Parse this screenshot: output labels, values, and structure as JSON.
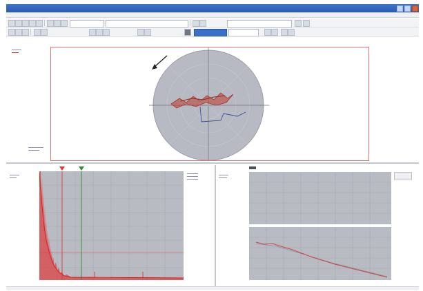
{
  "window": {
    "title": "",
    "controls": [
      "minimize-icon",
      "maximize-icon",
      "close-icon"
    ]
  },
  "menubar": {
    "items": [
      "",
      "",
      "",
      "",
      "",
      "",
      "",
      ""
    ]
  },
  "toolbar": {
    "combo_1_value": "",
    "combo_2_value": "",
    "combo_3_value": "",
    "combo_4_value": ""
  },
  "polar_view": {
    "label": "",
    "legend": "",
    "corner_note": "",
    "direction_arrow": "arrow-icon",
    "colors": {
      "disc": "#b7bac2",
      "trace_red": "#c0392b",
      "trace_blue": "#3b4aa0",
      "frame": "#e07575"
    }
  },
  "spectrum_panel": {
    "label": "",
    "axis_note": "",
    "cursor_colors": [
      "#d83a3a",
      "#2e8b3a"
    ],
    "colors": {
      "plot_bg": "#b9bbc3",
      "trace": "#e03030"
    }
  },
  "right_panel": {
    "label": "",
    "axis_note": "",
    "colors": {
      "plot_bg": "#b9bbc3",
      "trace": "#d04545",
      "reference": "#8a8fa3"
    }
  },
  "statusbar": {
    "text": ""
  }
}
